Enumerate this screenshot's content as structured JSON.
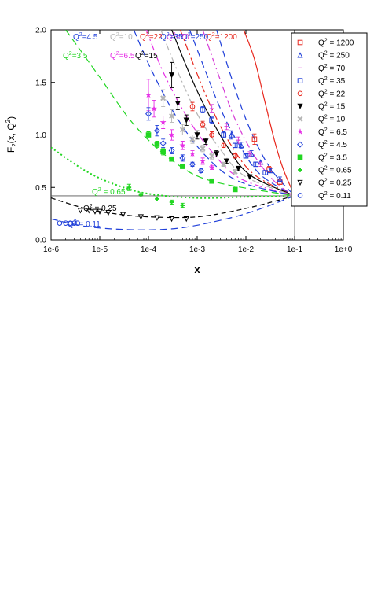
{
  "chart_data": {
    "type": "line",
    "xlabel": "x",
    "ylabel_main": "F",
    "ylabel_sub": "2",
    "ylabel_rest": "(x, Q",
    "ylabel_sup": "2",
    "ylabel_end": ")",
    "xscale": "log",
    "xlim": [
      1e-06,
      1
    ],
    "ylim": [
      0.0,
      2.0
    ],
    "x_ticks": [
      {
        "value": 1e-06,
        "label": "1e-6"
      },
      {
        "value": 1e-05,
        "label": "1e-5"
      },
      {
        "value": 0.0001,
        "label": "1e-4"
      },
      {
        "value": 0.001,
        "label": "1e-3"
      },
      {
        "value": 0.01,
        "label": "1e-2"
      },
      {
        "value": 0.1,
        "label": "1e-1"
      },
      {
        "value": 1,
        "label": "1e+0"
      }
    ],
    "y_ticks": [
      {
        "value": 0.0,
        "label": "0.0"
      },
      {
        "value": 0.5,
        "label": "0.5"
      },
      {
        "value": 1.0,
        "label": "1.0"
      },
      {
        "value": 1.5,
        "label": "1.5"
      },
      {
        "value": 2.0,
        "label": "2.0"
      }
    ],
    "reference_lines": {
      "horizontal_y": 0.42,
      "vertical_x": 0.1
    },
    "grid": false,
    "legend_position": "top-right",
    "series": [
      {
        "q2_label": "Q² = 1200",
        "legend": "Q",
        "legend_sup": "2",
        "legend_val": " = 1200",
        "color": "#e8281e",
        "dash": "solid",
        "marker": "square",
        "curve_label": "Q",
        "curve_sup": "2",
        "curve_val": "=1200",
        "curve": [
          [
            0.009,
            2.0
          ],
          [
            0.015,
            1.72
          ],
          [
            0.025,
            1.3
          ],
          [
            0.04,
            0.92
          ],
          [
            0.06,
            0.66
          ],
          [
            0.1,
            0.42
          ]
        ],
        "points": [
          [
            0.015,
            0.96,
            0.05
          ],
          [
            0.03,
            0.67,
            0.03
          ],
          [
            0.05,
            0.55,
            0.02
          ]
        ]
      },
      {
        "q2_label": "Q² = 250",
        "legend": "Q",
        "legend_sup": "2",
        "legend_val": " = 250",
        "color": "#1f3fd9",
        "dash": "longdash",
        "marker": "triangle",
        "curve_label": "Q",
        "curve_sup": "2",
        "curve_val": "=250",
        "curve": [
          [
            0.0025,
            2.0
          ],
          [
            0.005,
            1.55
          ],
          [
            0.01,
            1.15
          ],
          [
            0.02,
            0.84
          ],
          [
            0.04,
            0.62
          ],
          [
            0.1,
            0.42
          ]
        ],
        "points": [
          [
            0.005,
            1.0,
            0.04
          ],
          [
            0.008,
            0.9,
            0.03
          ],
          [
            0.013,
            0.82,
            0.03
          ],
          [
            0.02,
            0.74,
            0.02
          ],
          [
            0.032,
            0.66,
            0.02
          ],
          [
            0.05,
            0.58,
            0.02
          ]
        ]
      },
      {
        "q2_label": "Q² = 70",
        "legend": "Q",
        "legend_sup": "2",
        "legend_val": " = 70",
        "color": "#d63ad6",
        "dash": "dashdot",
        "marker": "dash",
        "curve_label": "Q",
        "curve_sup": "2",
        "curve_val": "=70",
        "curve": [
          [
            0.0013,
            2.0
          ],
          [
            0.003,
            1.52
          ],
          [
            0.006,
            1.15
          ],
          [
            0.015,
            0.8
          ],
          [
            0.04,
            0.55
          ],
          [
            0.1,
            0.42
          ]
        ],
        "points": [
          [
            0.002,
            1.25,
            0.04
          ],
          [
            0.004,
            1.08,
            0.03
          ],
          [
            0.007,
            0.95,
            0.03
          ],
          [
            0.012,
            0.82,
            0.02
          ],
          [
            0.02,
            0.72,
            0.02
          ]
        ]
      },
      {
        "q2_label": "Q² = 35",
        "legend": "Q",
        "legend_sup": "2",
        "legend_val": " = 35",
        "color": "#1f3fd9",
        "dash": "longdash",
        "marker": "square",
        "curve_label": "Q",
        "curve_sup": "2",
        "curve_val": "=35",
        "curve": [
          [
            0.0007,
            2.0
          ],
          [
            0.0015,
            1.6
          ],
          [
            0.003,
            1.25
          ],
          [
            0.007,
            0.92
          ],
          [
            0.02,
            0.62
          ],
          [
            0.1,
            0.42
          ]
        ],
        "points": [
          [
            0.0013,
            1.24,
            0.03
          ],
          [
            0.002,
            1.14,
            0.03
          ],
          [
            0.0035,
            1.0,
            0.03
          ],
          [
            0.006,
            0.9,
            0.02
          ],
          [
            0.01,
            0.8,
            0.02
          ],
          [
            0.016,
            0.72,
            0.02
          ],
          [
            0.025,
            0.64,
            0.02
          ]
        ]
      },
      {
        "q2_label": "Q² = 22",
        "legend": "Q",
        "legend_sup": "2",
        "legend_val": " = 22",
        "color": "#e8281e",
        "dash": "dashdot",
        "marker": "circle",
        "curve_label": "Q",
        "curve_sup": "2",
        "curve_val": "=22",
        "curve": [
          [
            0.00045,
            2.0
          ],
          [
            0.001,
            1.58
          ],
          [
            0.002,
            1.25
          ],
          [
            0.005,
            0.9
          ],
          [
            0.015,
            0.62
          ],
          [
            0.1,
            0.42
          ]
        ],
        "points": [
          [
            0.0008,
            1.27,
            0.04
          ],
          [
            0.0013,
            1.1,
            0.03
          ],
          [
            0.002,
            1.0,
            0.03
          ],
          [
            0.0035,
            0.9,
            0.02
          ],
          [
            0.006,
            0.8,
            0.02
          ]
        ]
      },
      {
        "q2_label": "Q² = 15",
        "legend": "Q",
        "legend_sup": "2",
        "legend_val": " = 15",
        "color": "#000000",
        "dash": "solid",
        "marker": "triangle-down",
        "curve_label": "Q",
        "curve_sup": "2",
        "curve_val": "=15",
        "curve": [
          [
            0.0003,
            2.0
          ],
          [
            0.0007,
            1.58
          ],
          [
            0.0015,
            1.25
          ],
          [
            0.004,
            0.9
          ],
          [
            0.012,
            0.62
          ],
          [
            0.1,
            0.42
          ]
        ],
        "points": [
          [
            0.0003,
            1.57,
            0.12
          ],
          [
            0.0004,
            1.3,
            0.06
          ],
          [
            0.0006,
            1.14,
            0.05
          ],
          [
            0.001,
            1.0,
            0.04
          ],
          [
            0.0015,
            0.94,
            0.03
          ],
          [
            0.0025,
            0.82,
            0.03
          ],
          [
            0.004,
            0.75,
            0.02
          ],
          [
            0.007,
            0.68,
            0.02
          ],
          [
            0.012,
            0.6,
            0.02
          ]
        ]
      },
      {
        "q2_label": "Q² = 10",
        "legend": "Q",
        "legend_sup": "2",
        "legend_val": " = 10",
        "color": "#b4b4b4",
        "dash": "dashdot",
        "marker": "x",
        "curve_label": "Q",
        "curve_sup": "2",
        "curve_val": "=10",
        "curve": [
          [
            0.00018,
            2.0
          ],
          [
            0.0004,
            1.6
          ],
          [
            0.001,
            1.2
          ],
          [
            0.003,
            0.86
          ],
          [
            0.01,
            0.6
          ],
          [
            0.1,
            0.42
          ]
        ],
        "points": [
          [
            0.0002,
            1.35,
            0.08
          ],
          [
            0.0003,
            1.18,
            0.06
          ],
          [
            0.0005,
            1.05,
            0.05
          ],
          [
            0.0008,
            0.96,
            0.04
          ],
          [
            0.0013,
            0.87,
            0.03
          ],
          [
            0.002,
            0.8,
            0.03
          ],
          [
            0.0035,
            0.72,
            0.02
          ],
          [
            0.006,
            0.65,
            0.02
          ]
        ]
      },
      {
        "q2_label": "Q² = 6.5",
        "legend": "Q",
        "legend_sup": "2",
        "legend_val": " = 6.5",
        "color": "#e62ee6",
        "dash": "dashdot",
        "marker": "star",
        "curve_label": "Q",
        "curve_sup": "2",
        "curve_val": "=6.5",
        "curve": [
          [
            9e-05,
            2.0
          ],
          [
            0.0002,
            1.6
          ],
          [
            0.0006,
            1.18
          ],
          [
            0.002,
            0.84
          ],
          [
            0.008,
            0.58
          ],
          [
            0.1,
            0.42
          ]
        ],
        "points": [
          [
            0.0001,
            1.38,
            0.15
          ],
          [
            0.00013,
            1.25,
            0.08
          ],
          [
            0.0002,
            1.12,
            0.06
          ],
          [
            0.0003,
            1.0,
            0.05
          ],
          [
            0.0005,
            0.9,
            0.04
          ],
          [
            0.0008,
            0.82,
            0.03
          ],
          [
            0.0013,
            0.75,
            0.03
          ],
          [
            0.002,
            0.69,
            0.02
          ]
        ]
      },
      {
        "q2_label": "Q² = 4.5",
        "legend": "Q",
        "legend_sup": "2",
        "legend_val": " = 4.5",
        "color": "#1f3fd9",
        "dash": "longdash",
        "marker": "diamond",
        "curve_label": "Q",
        "curve_sup": "2",
        "curve_val": "=4.5",
        "curve": [
          [
            5e-05,
            2.0
          ],
          [
            0.00012,
            1.6
          ],
          [
            0.0004,
            1.15
          ],
          [
            0.0015,
            0.8
          ],
          [
            0.007,
            0.56
          ],
          [
            0.1,
            0.42
          ]
        ],
        "points": [
          [
            0.0001,
            1.2,
            0.06
          ],
          [
            0.00015,
            1.04,
            0.05
          ],
          [
            0.0002,
            0.92,
            0.04
          ],
          [
            0.0003,
            0.85,
            0.03
          ],
          [
            0.0005,
            0.78,
            0.03
          ],
          [
            0.0008,
            0.72,
            0.02
          ],
          [
            0.0012,
            0.66,
            0.02
          ]
        ]
      },
      {
        "q2_label": "Q² = 3.5",
        "legend": "Q",
        "legend_sup": "2",
        "legend_val": " = 3.5",
        "color": "#22d622",
        "dash": "longdash",
        "marker": "filled-square",
        "curve_label": "Q",
        "curve_sup": "2",
        "curve_val": "=3.5",
        "curve": [
          [
            2e-06,
            2.0
          ],
          [
            1e-05,
            1.55
          ],
          [
            5e-05,
            1.1
          ],
          [
            0.0003,
            0.76
          ],
          [
            0.002,
            0.56
          ],
          [
            0.1,
            0.42
          ]
        ],
        "points": [
          [
            0.0001,
            1.0,
            0.03
          ],
          [
            0.00015,
            0.91,
            0.03
          ],
          [
            0.0002,
            0.84,
            0.03
          ],
          [
            0.0003,
            0.77,
            0.02
          ],
          [
            0.0005,
            0.7,
            0.02
          ],
          [
            0.002,
            0.56,
            0.02
          ],
          [
            0.006,
            0.48,
            0.02
          ]
        ]
      },
      {
        "q2_label": "Q² = 0.65",
        "legend": "Q",
        "legend_sup": "2",
        "legend_val": " = 0.65",
        "color": "#22d622",
        "dash": "dotted",
        "marker": "plus",
        "curve_label": "Q",
        "curve_sup": "2",
        "curve_val": " = 0.65",
        "curve": [
          [
            1e-06,
            0.88
          ],
          [
            5e-06,
            0.66
          ],
          [
            2e-05,
            0.53
          ],
          [
            0.0001,
            0.44
          ],
          [
            0.001,
            0.4
          ],
          [
            0.01,
            0.41
          ],
          [
            0.1,
            0.42
          ]
        ],
        "points": [
          [
            4e-05,
            0.5,
            0.03
          ],
          [
            7e-05,
            0.43,
            0.02
          ],
          [
            0.00015,
            0.39,
            0.02
          ],
          [
            0.0003,
            0.36,
            0.02
          ],
          [
            0.0005,
            0.33,
            0.02
          ]
        ]
      },
      {
        "q2_label": "Q² = 0.25",
        "legend": "Q",
        "legend_sup": "2",
        "legend_val": " = 0.25",
        "color": "#000000",
        "dash": "dashed",
        "marker": "triangle-down-open",
        "curve_label": "Q",
        "curve_sup": "2",
        "curve_val": " = 0.25",
        "curve": [
          [
            1e-06,
            0.4
          ],
          [
            5e-06,
            0.3
          ],
          [
            2e-05,
            0.25
          ],
          [
            0.0001,
            0.22
          ],
          [
            0.001,
            0.22
          ],
          [
            0.01,
            0.3
          ],
          [
            0.1,
            0.42
          ]
        ],
        "points": [
          [
            4e-06,
            0.28,
            0.01
          ],
          [
            6e-06,
            0.28,
            0.01
          ],
          [
            8e-06,
            0.27,
            0.01
          ],
          [
            1e-05,
            0.27,
            0.01
          ],
          [
            1.5e-05,
            0.26,
            0.01
          ],
          [
            3e-05,
            0.24,
            0.01
          ],
          [
            7e-05,
            0.22,
            0.01
          ],
          [
            0.00015,
            0.21,
            0.01
          ],
          [
            0.0003,
            0.2,
            0.01
          ],
          [
            0.0006,
            0.2,
            0.01
          ]
        ]
      },
      {
        "q2_label": "Q² = 0.11",
        "legend": "Q",
        "legend_sup": "2",
        "legend_val": " = 0.11",
        "color": "#1f3fd9",
        "dash": "longdash",
        "marker": "circle",
        "curve_label": "Q",
        "curve_sup": "2",
        "curve_val": " = 0.11",
        "curve": [
          [
            1e-06,
            0.2
          ],
          [
            5e-06,
            0.13
          ],
          [
            3e-05,
            0.1
          ],
          [
            0.0002,
            0.1
          ],
          [
            0.001,
            0.14
          ],
          [
            0.01,
            0.25
          ],
          [
            0.1,
            0.42
          ]
        ],
        "points": [
          [
            1.5e-06,
            0.16,
            0.01
          ],
          [
            2e-06,
            0.16,
            0.01
          ],
          [
            2.5e-06,
            0.16,
            0.01
          ],
          [
            3e-06,
            0.16,
            0.01
          ],
          [
            3.5e-06,
            0.16,
            0.01
          ]
        ]
      }
    ]
  }
}
